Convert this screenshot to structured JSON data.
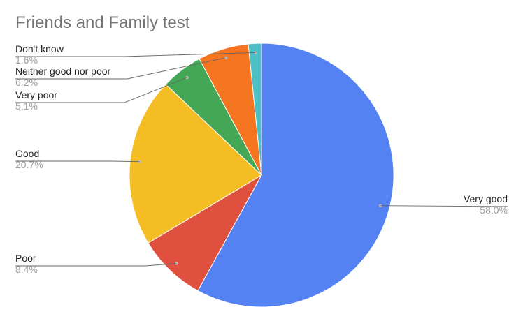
{
  "chart_data": {
    "type": "pie",
    "title": "Friends and Family test",
    "start_angle_deg": 0,
    "direction": "clockwise",
    "slices": [
      {
        "label": "Very good",
        "value": 58.0,
        "pct_text": "58.0%",
        "color": "#5582F2"
      },
      {
        "label": "Poor",
        "value": 8.4,
        "pct_text": "8.4%",
        "color": "#E0503E"
      },
      {
        "label": "Good",
        "value": 20.7,
        "pct_text": "20.7%",
        "color": "#F4BD24"
      },
      {
        "label": "Very poor",
        "value": 5.1,
        "pct_text": "5.1%",
        "color": "#43A755"
      },
      {
        "label": "Neither good nor poor",
        "value": 6.2,
        "pct_text": "6.2%",
        "color": "#F67520"
      },
      {
        "label": "Don't know",
        "value": 1.6,
        "pct_text": "1.6%",
        "color": "#4DBFC5"
      }
    ],
    "label_text_color": "#222222",
    "pct_text_color": "#9e9e9e",
    "leader_color": "#666666",
    "dot_color": "#bdbdbd"
  }
}
